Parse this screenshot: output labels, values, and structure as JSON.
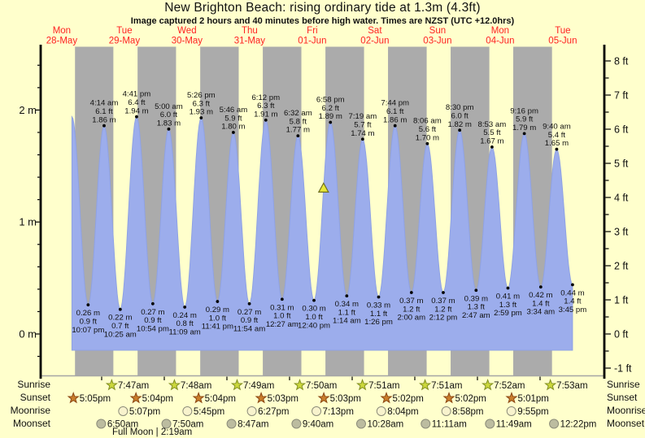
{
  "title": "New Brighton Beach: rising  ordinary tide at 1.3m (4.3ft)",
  "subtitle": "Image captured 2 hours and 40 minutes before high water. Times are NZST (UTC +12.0hrs)",
  "days": [
    {
      "dow": "Mon",
      "date": "28-May"
    },
    {
      "dow": "Tue",
      "date": "29-May"
    },
    {
      "dow": "Wed",
      "date": "30-May"
    },
    {
      "dow": "Thu",
      "date": "31-May"
    },
    {
      "dow": "Fri",
      "date": "01-Jun"
    },
    {
      "dow": "Sat",
      "date": "02-Jun"
    },
    {
      "dow": "Sun",
      "date": "03-Jun"
    },
    {
      "dow": "Mon",
      "date": "04-Jun"
    },
    {
      "dow": "Tue",
      "date": "05-Jun"
    }
  ],
  "chart_data": {
    "type": "area",
    "x_unit": "hours since Mon 28-May 00:00 NZST",
    "y_unit_left": "m",
    "y_unit_right": "ft",
    "axes": {
      "left_labels": [
        {
          "text": "2 m",
          "value": 2
        },
        {
          "text": "1 m",
          "value": 1
        },
        {
          "text": "0 m",
          "value": 0
        }
      ],
      "right_labels": [
        {
          "text": "8 ft",
          "value": 8
        },
        {
          "text": "7 ft",
          "value": 7
        },
        {
          "text": "6 ft",
          "value": 6
        },
        {
          "text": "5 ft",
          "value": 5
        },
        {
          "text": "4 ft",
          "value": 4
        },
        {
          "text": "3 ft",
          "value": 3
        },
        {
          "text": "2 ft",
          "value": 2
        },
        {
          "text": "1 ft",
          "value": 1
        },
        {
          "text": "0 ft",
          "value": 0
        },
        {
          "text": "-1 ft",
          "value": -1
        }
      ]
    },
    "lead_point": {
      "t": 15.9,
      "m": 1.94
    },
    "highs": [
      {
        "t": 28.2333,
        "m": 1.86,
        "lines": [
          "4:14 am",
          "6.1 ft",
          "1.86 m"
        ]
      },
      {
        "t": 40.6833,
        "m": 1.94,
        "lines": [
          "4:41 pm",
          "6.4 ft",
          "1.94 m"
        ]
      },
      {
        "t": 53.0,
        "m": 1.83,
        "lines": [
          "5:00 am",
          "6.0 ft",
          "1.83 m"
        ]
      },
      {
        "t": 65.4333,
        "m": 1.93,
        "lines": [
          "5:26 pm",
          "6.3 ft",
          "1.93 m"
        ]
      },
      {
        "t": 77.7667,
        "m": 1.8,
        "lines": [
          "5:46 am",
          "5.9 ft",
          "1.80 m"
        ]
      },
      {
        "t": 90.2,
        "m": 1.91,
        "lines": [
          "6:12 pm",
          "6.3 ft",
          "1.91 m"
        ]
      },
      {
        "t": 102.5333,
        "m": 1.77,
        "lines": [
          "6:32 am",
          "5.8 ft",
          "1.77 m"
        ]
      },
      {
        "t": 114.9667,
        "m": 1.89,
        "lines": [
          "6:58 pm",
          "6.2 ft",
          "1.89 m"
        ]
      },
      {
        "t": 127.3167,
        "m": 1.74,
        "lines": [
          "7:19 am",
          "5.7 ft",
          "1.74 m"
        ]
      },
      {
        "t": 139.7333,
        "m": 1.86,
        "lines": [
          "7:44 pm",
          "6.1 ft",
          "1.86 m"
        ]
      },
      {
        "t": 152.1,
        "m": 1.7,
        "lines": [
          "8:06 am",
          "5.6 ft",
          "1.70 m"
        ]
      },
      {
        "t": 164.5,
        "m": 1.82,
        "lines": [
          "8:30 pm",
          "6.0 ft",
          "1.82 m"
        ]
      },
      {
        "t": 176.8833,
        "m": 1.67,
        "lines": [
          "8:53 am",
          "5.5 ft",
          "1.67 m"
        ]
      },
      {
        "t": 189.2667,
        "m": 1.79,
        "lines": [
          "9:16 pm",
          "5.9 ft",
          "1.79 m"
        ]
      },
      {
        "t": 201.6667,
        "m": 1.65,
        "lines": [
          "9:40 am",
          "5.4 ft",
          "1.65 m"
        ]
      }
    ],
    "lows": [
      {
        "t": 22.1167,
        "m": 0.26,
        "lines": [
          "0.26 m",
          "0.9 ft",
          "10:07 pm"
        ]
      },
      {
        "t": 34.4167,
        "m": 0.22,
        "lines": [
          "0.22 m",
          "0.7 ft",
          "10:25 am"
        ]
      },
      {
        "t": 46.9,
        "m": 0.27,
        "lines": [
          "0.27 m",
          "0.9 ft",
          "10:54 pm"
        ]
      },
      {
        "t": 59.15,
        "m": 0.24,
        "lines": [
          "0.24 m",
          "0.8 ft",
          "11:09 am"
        ]
      },
      {
        "t": 71.6833,
        "m": 0.29,
        "lines": [
          "0.29 m",
          "1.0 ft",
          "11:41 pm"
        ]
      },
      {
        "t": 83.9,
        "m": 0.27,
        "lines": [
          "0.27 m",
          "0.9 ft",
          "11:54 am"
        ]
      },
      {
        "t": 96.45,
        "m": 0.31,
        "lines": [
          "0.31 m",
          "1.0 ft",
          "12:27 am"
        ]
      },
      {
        "t": 108.6667,
        "m": 0.3,
        "lines": [
          "0.30 m",
          "1.0 ft",
          "12:40 pm"
        ]
      },
      {
        "t": 121.2333,
        "m": 0.34,
        "lines": [
          "0.34 m",
          "1.1 ft",
          "1:14 am"
        ]
      },
      {
        "t": 133.4333,
        "m": 0.33,
        "lines": [
          "0.33 m",
          "1.1 ft",
          "1:26 pm"
        ]
      },
      {
        "t": 146.0,
        "m": 0.37,
        "lines": [
          "0.37 m",
          "1.2 ft",
          "2:00 am"
        ]
      },
      {
        "t": 158.2,
        "m": 0.37,
        "lines": [
          "0.37 m",
          "1.2 ft",
          "2:12 pm"
        ]
      },
      {
        "t": 170.7833,
        "m": 0.39,
        "lines": [
          "0.39 m",
          "1.3 ft",
          "2:47 am"
        ]
      },
      {
        "t": 182.9833,
        "m": 0.41,
        "lines": [
          "0.41 m",
          "1.3 ft",
          "2:59 pm"
        ]
      },
      {
        "t": 195.5667,
        "m": 0.42,
        "lines": [
          "0.42 m",
          "1.4 ft",
          "3:34 am"
        ]
      },
      {
        "t": 207.75,
        "m": 0.44,
        "lines": [
          "0.44 m",
          "1.4 ft",
          "3:45 pm"
        ]
      }
    ],
    "night_bands": [
      [
        17.083,
        31.783
      ],
      [
        41.067,
        55.8
      ],
      [
        65.067,
        79.817
      ],
      [
        89.05,
        103.833
      ],
      [
        113.05,
        127.85
      ],
      [
        137.033,
        151.85
      ],
      [
        161.033,
        175.867
      ],
      [
        185.017,
        199.883
      ]
    ],
    "current_marker": {
      "t": 112.34,
      "m": 1.3
    },
    "bottom_ticks_t": [
      27.3,
      51.3,
      75.3,
      99.3,
      123.3,
      147.3,
      171.3,
      195.3
    ]
  },
  "almanac": {
    "rows": [
      {
        "id": "sunrise",
        "label": "Sunrise",
        "icon": "sunrise-star",
        "events": [
          {
            "t": 31.783,
            "time": "7:47am"
          },
          {
            "t": 55.8,
            "time": "7:48am"
          },
          {
            "t": 79.817,
            "time": "7:49am"
          },
          {
            "t": 103.833,
            "time": "7:50am"
          },
          {
            "t": 127.85,
            "time": "7:51am"
          },
          {
            "t": 151.85,
            "time": "7:51am"
          },
          {
            "t": 175.867,
            "time": "7:52am"
          },
          {
            "t": 199.883,
            "time": "7:53am"
          }
        ]
      },
      {
        "id": "sunset",
        "label": "Sunset",
        "icon": "sunset-star",
        "events": [
          {
            "t": 17.083,
            "time": "5:05pm"
          },
          {
            "t": 41.067,
            "time": "5:04pm"
          },
          {
            "t": 65.067,
            "time": "5:04pm"
          },
          {
            "t": 89.05,
            "time": "5:03pm"
          },
          {
            "t": 113.05,
            "time": "5:03pm"
          },
          {
            "t": 137.033,
            "time": "5:02pm"
          },
          {
            "t": 161.033,
            "time": "5:02pm"
          },
          {
            "t": 185.017,
            "time": "5:01pm"
          }
        ]
      },
      {
        "id": "moonrise",
        "label": "Moonrise",
        "icon": "moonrise-moon",
        "events": [
          {
            "t": 41.117,
            "time": "5:07pm"
          },
          {
            "t": 65.75,
            "time": "5:45pm"
          },
          {
            "t": 90.45,
            "time": "6:27pm"
          },
          {
            "t": 115.217,
            "time": "7:13pm"
          },
          {
            "t": 140.067,
            "time": "8:04pm"
          },
          {
            "t": 164.967,
            "time": "8:58pm"
          },
          {
            "t": 189.917,
            "time": "9:55pm"
          }
        ]
      },
      {
        "id": "moonset",
        "label": "Moonset",
        "icon": "moonset-moon",
        "events": [
          {
            "t": 30.833,
            "time": "6:50am"
          },
          {
            "t": 55.833,
            "time": "7:50am"
          },
          {
            "t": 80.783,
            "time": "8:47am"
          },
          {
            "t": 105.667,
            "time": "9:40am"
          },
          {
            "t": 130.467,
            "time": "10:28am"
          },
          {
            "t": 155.183,
            "time": "11:11am"
          },
          {
            "t": 179.817,
            "time": "11:49am"
          },
          {
            "t": 204.367,
            "time": "12:22pm"
          }
        ]
      }
    ],
    "full_moon_note": "Full Moon | 2:19am"
  },
  "colors": {
    "background": "#ffffcc",
    "night_band": "#ababab",
    "tide_fill": "#9cadec",
    "tide_edge": "#8fa2e4",
    "day_label": "#ff2222",
    "annotation": "#111111",
    "marker_fill": "#e8e838",
    "marker_edge": "#6f6f20",
    "sunrise_star": "#ccd83c",
    "sunrise_star_edge": "#7f8d1f",
    "sunset_star": "#c97d2a",
    "sunset_star_edge": "#8a4513",
    "moonrise_fill": "#f8f3cd",
    "moonset_fill": "#bcbca0",
    "moon_edge": "#8c8c7a",
    "axis_line": "#000000",
    "plot_bottom_line": "#a6a6a6"
  }
}
